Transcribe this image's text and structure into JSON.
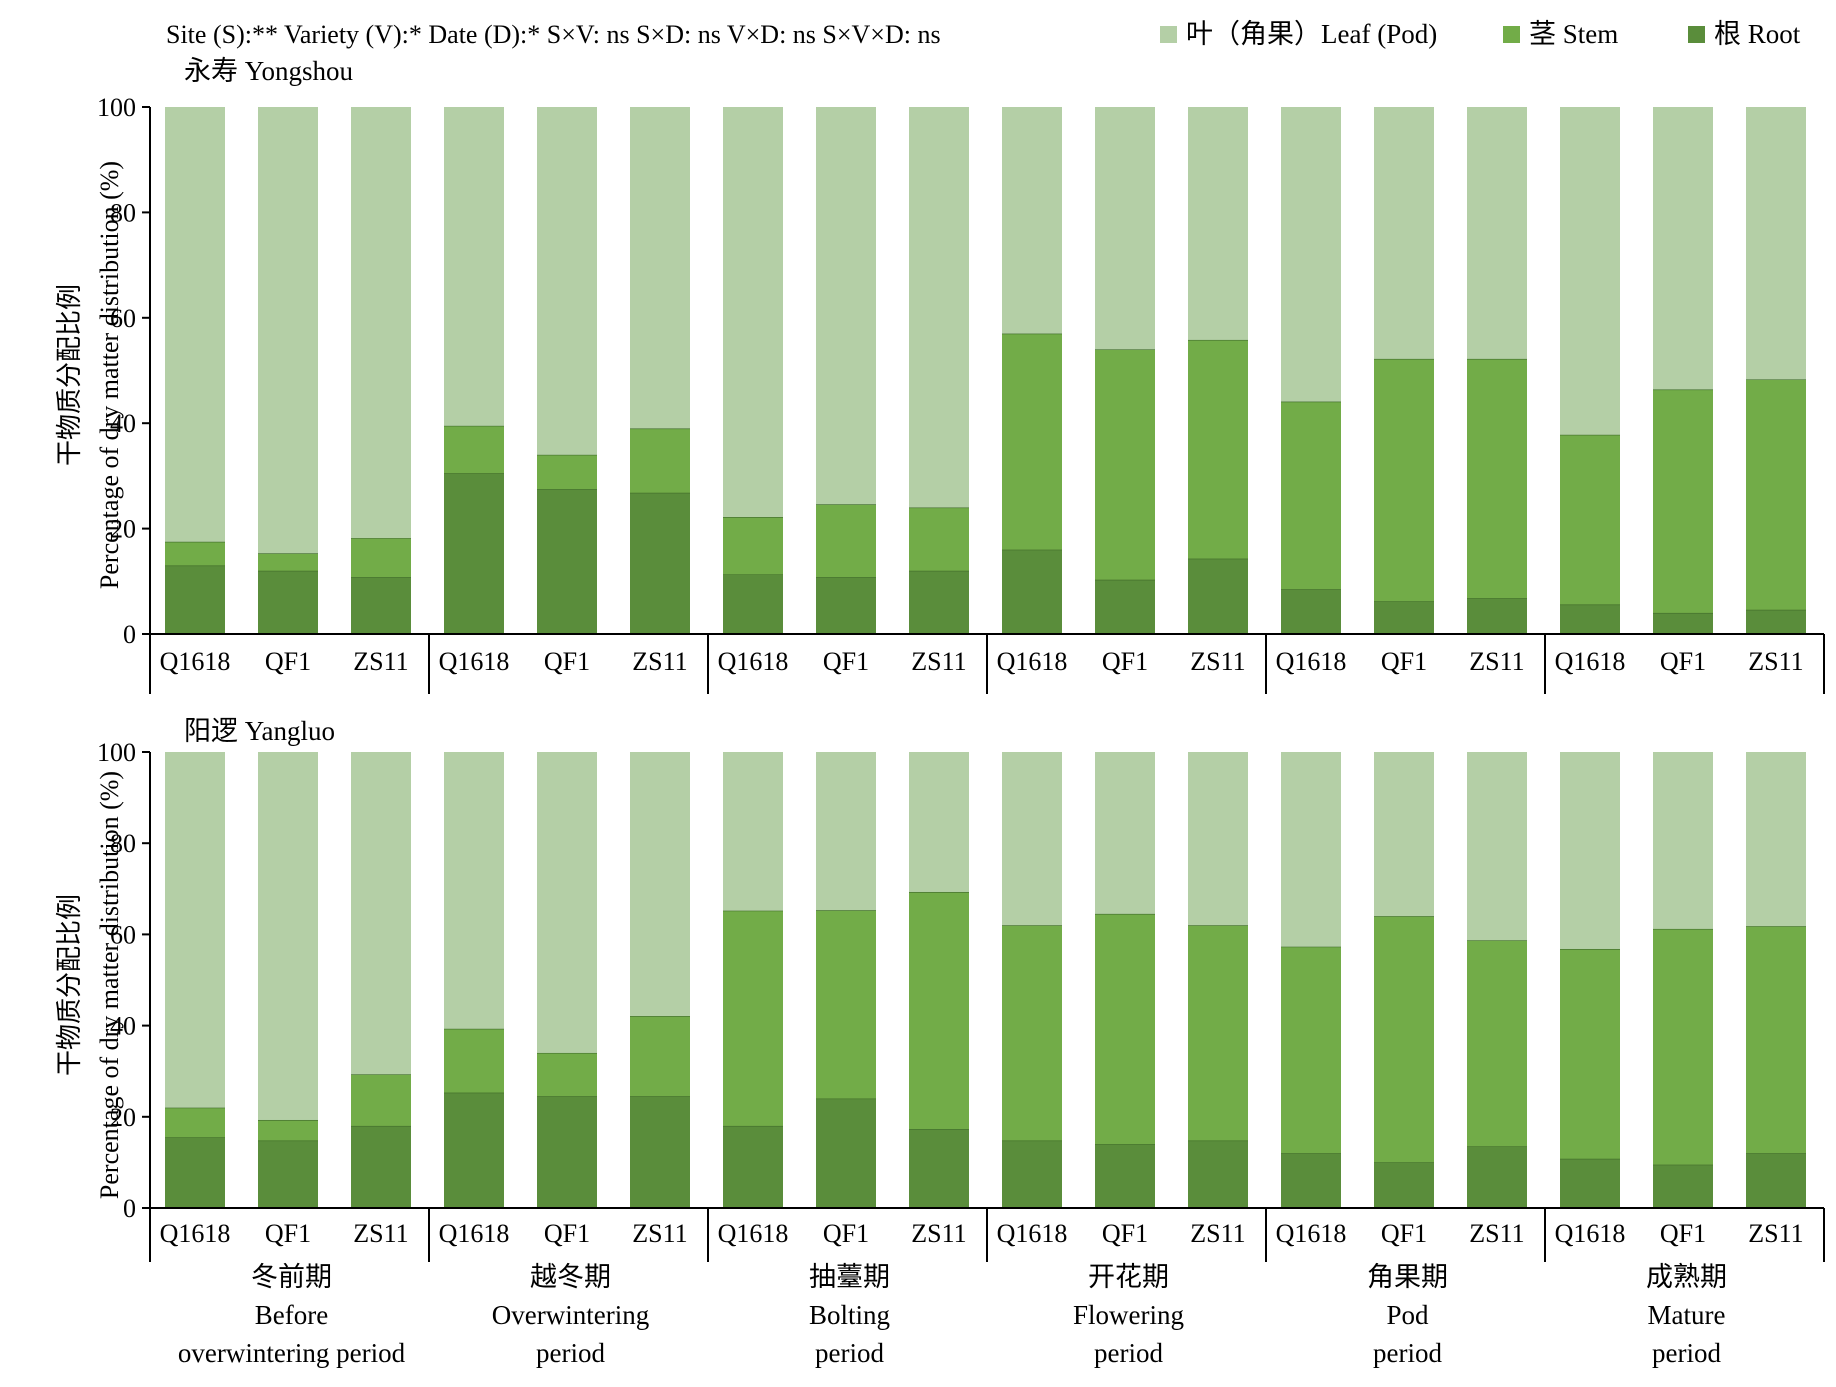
{
  "stats_line": "Site (S):** Variety (V):* Date (D):* S×V: ns S×D: ns V×D: ns S×V×D: ns",
  "colors": {
    "leaf": "#b4cfa6",
    "stem": "#72ac48",
    "root": "#5a8d3b"
  },
  "legend": [
    {
      "key": "leaf",
      "label": "叶（角果）Leaf (Pod)"
    },
    {
      "key": "stem",
      "label": "茎 Stem"
    },
    {
      "key": "root",
      "label": "根 Root"
    }
  ],
  "chart_data": [
    {
      "type": "bar",
      "stacked": true,
      "site": "永寿 Yongshou",
      "ylabel": [
        "干物质分配比例",
        "Percentage of dry matter distribution (%)"
      ],
      "ylim": [
        0,
        100
      ],
      "yticks": [
        0,
        20,
        40,
        60,
        80,
        100
      ],
      "grid": false,
      "varieties": [
        "Q1618",
        "QF1",
        "ZS11"
      ],
      "periods": [
        {
          "cn": "冬前期",
          "en": [
            "Before",
            "overwintering period"
          ]
        },
        {
          "cn": "越冬期",
          "en": [
            "Overwintering",
            "period"
          ]
        },
        {
          "cn": "抽薹期",
          "en": [
            "Bolting",
            "period"
          ]
        },
        {
          "cn": "开花期",
          "en": [
            "Flowering",
            "period"
          ]
        },
        {
          "cn": "角果期",
          "en": [
            "Pod",
            "period"
          ]
        },
        {
          "cn": "成熟期",
          "en": [
            "Mature",
            "period"
          ]
        }
      ],
      "series": [
        {
          "name": "根 Root",
          "key": "root",
          "values": [
            13,
            12,
            10.8,
            30.5,
            27.5,
            26.8,
            11.3,
            10.8,
            12,
            16,
            10.3,
            14.3,
            8.5,
            6.2,
            6.8,
            5.6,
            4,
            4.6
          ]
        },
        {
          "name": "茎 Stem",
          "key": "stem",
          "values": [
            4.5,
            3.3,
            7.4,
            9,
            6.5,
            12.2,
            10.9,
            13.8,
            12,
            41,
            43.7,
            41.5,
            35.6,
            46,
            45.4,
            32.2,
            42.4,
            43.7
          ]
        },
        {
          "name": "叶（角果）Leaf (Pod)",
          "key": "leaf",
          "values": [
            82.5,
            84.7,
            81.8,
            60.5,
            66,
            61,
            77.8,
            75.4,
            76,
            43,
            46,
            44.2,
            55.9,
            47.8,
            47.8,
            62.2,
            53.6,
            51.7
          ]
        }
      ]
    },
    {
      "type": "bar",
      "stacked": true,
      "site": "阳逻 Yangluo",
      "ylabel": [
        "干物质分配比例",
        "Percentage of dry matter distribution (%)"
      ],
      "ylim": [
        0,
        100
      ],
      "yticks": [
        0,
        20,
        40,
        60,
        80,
        100
      ],
      "grid": false,
      "varieties": [
        "Q1618",
        "QF1",
        "ZS11"
      ],
      "periods": [
        {
          "cn": "冬前期",
          "en": [
            "Before",
            "overwintering period"
          ]
        },
        {
          "cn": "越冬期",
          "en": [
            "Overwintering",
            "period"
          ]
        },
        {
          "cn": "抽薹期",
          "en": [
            "Bolting",
            "period"
          ]
        },
        {
          "cn": "开花期",
          "en": [
            "Flowering",
            "period"
          ]
        },
        {
          "cn": "角果期",
          "en": [
            "Pod",
            "period"
          ]
        },
        {
          "cn": "成熟期",
          "en": [
            "Mature",
            "period"
          ]
        }
      ],
      "series": [
        {
          "name": "根 Root",
          "key": "root",
          "values": [
            15.5,
            14.8,
            18,
            25.3,
            24.5,
            24.5,
            18,
            24,
            17.3,
            14.8,
            14,
            14.8,
            12,
            10,
            13.5,
            10.8,
            9.5,
            12
          ]
        },
        {
          "name": "茎 Stem",
          "key": "stem",
          "values": [
            6.5,
            4.5,
            11.3,
            14,
            9.5,
            17.6,
            47.2,
            41.3,
            52,
            47.2,
            50.5,
            47.2,
            45.3,
            54,
            45.2,
            46,
            51.7,
            49.8
          ]
        },
        {
          "name": "叶（角果）Leaf (Pod)",
          "key": "leaf",
          "values": [
            78,
            80.7,
            70.7,
            60.7,
            66,
            57.9,
            34.8,
            34.7,
            30.7,
            38,
            35.5,
            38,
            42.7,
            36,
            41.3,
            43.2,
            38.8,
            38.2
          ]
        }
      ]
    }
  ]
}
